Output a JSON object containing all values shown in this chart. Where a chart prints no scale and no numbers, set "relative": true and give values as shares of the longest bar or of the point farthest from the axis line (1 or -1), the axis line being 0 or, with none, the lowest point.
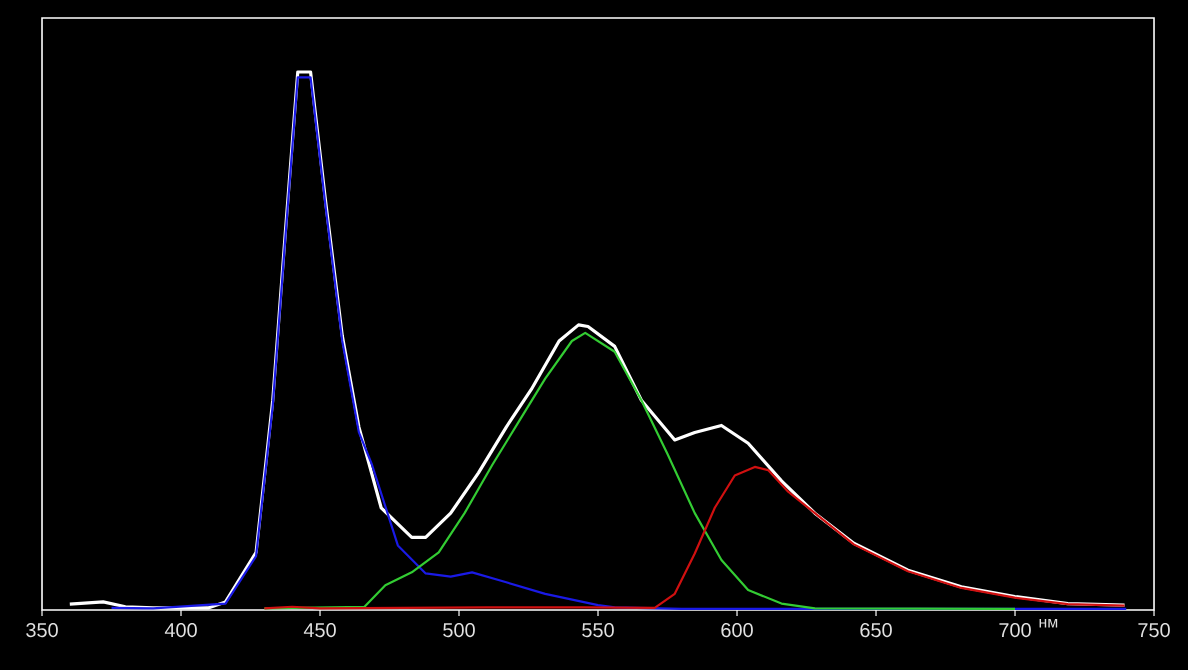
{
  "chart_data": {
    "type": "line",
    "relative": true,
    "xlabel": "нм",
    "xlim": [
      350,
      750
    ],
    "xticks": [
      350,
      400,
      450,
      500,
      550,
      600,
      650,
      700,
      750
    ],
    "series": [
      {
        "color": "#ffffff",
        "x": [
          360,
          372,
          380,
          390,
          410,
          416,
          427,
          433,
          437.5,
          442,
          446.6,
          452,
          458,
          464,
          472,
          483,
          488,
          497,
          507,
          517,
          526,
          536,
          543,
          546.4,
          556,
          565.6,
          577.6,
          584.8,
          594.4,
          604,
          616,
          628,
          642,
          661.5,
          680.7,
          699.9,
          719,
          739.4
        ],
        "values": [
          0.011,
          0.015,
          0.006,
          0.004,
          0.004,
          0.015,
          0.107,
          0.39,
          0.7,
          1.0,
          1.0,
          0.76,
          0.51,
          0.34,
          0.19,
          0.135,
          0.135,
          0.18,
          0.255,
          0.34,
          0.41,
          0.5,
          0.53,
          0.527,
          0.49,
          0.39,
          0.316,
          0.33,
          0.343,
          0.31,
          0.24,
          0.18,
          0.124,
          0.074,
          0.043,
          0.025,
          0.012,
          0.009
        ]
      },
      {
        "color": "#1a1ae6",
        "x": [
          375,
          390,
          416,
          427,
          433,
          437.5,
          442,
          446.6,
          452,
          458,
          464,
          468.7,
          478,
          488,
          497,
          504.7,
          516.7,
          531,
          550,
          556,
          580,
          740
        ],
        "values": [
          0.004,
          0.003,
          0.012,
          0.1,
          0.38,
          0.69,
          0.99,
          0.99,
          0.75,
          0.5,
          0.33,
          0.27,
          0.12,
          0.068,
          0.062,
          0.07,
          0.052,
          0.03,
          0.009,
          0.005,
          0.002,
          0.002
        ]
      },
      {
        "color": "#33cc33",
        "x": [
          430,
          466,
          473.5,
          483,
          492.7,
          502,
          512,
          521.5,
          531,
          540.6,
          545.4,
          556,
          565.6,
          575,
          584.8,
          594.4,
          604,
          616,
          628,
          700
        ],
        "values": [
          0.003,
          0.006,
          0.046,
          0.07,
          0.107,
          0.18,
          0.27,
          0.35,
          0.43,
          0.5,
          0.515,
          0.48,
          0.39,
          0.29,
          0.18,
          0.093,
          0.037,
          0.012,
          0.003,
          0.002
        ]
      },
      {
        "color": "#d01010",
        "x": [
          430,
          440,
          450,
          510,
          545,
          570.4,
          577.6,
          584.8,
          592,
          599.2,
          606.4,
          611.2,
          618.4,
          628,
          642,
          661.5,
          680.7,
          699.9,
          719,
          739.4
        ],
        "values": [
          0.003,
          0.006,
          0.003,
          0.005,
          0.005,
          0.004,
          0.03,
          0.105,
          0.19,
          0.25,
          0.266,
          0.26,
          0.22,
          0.18,
          0.122,
          0.072,
          0.041,
          0.023,
          0.011,
          0.008
        ]
      }
    ]
  }
}
